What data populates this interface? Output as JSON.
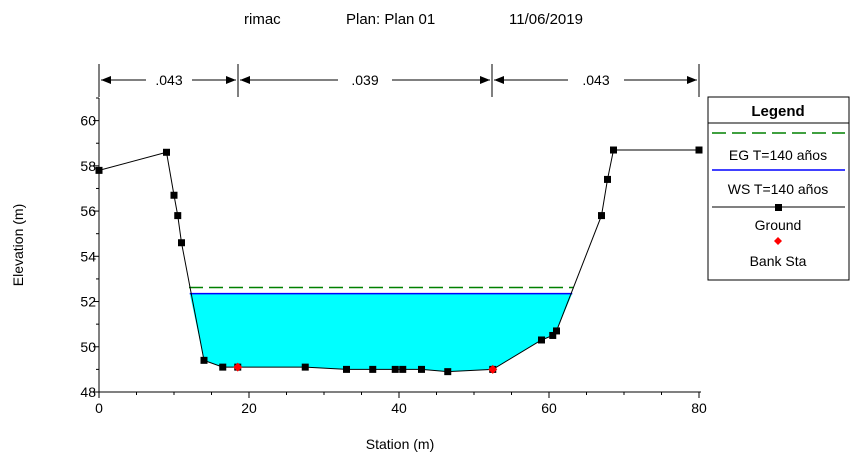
{
  "chart_data": {
    "type": "line",
    "title": {
      "project": "rimac",
      "plan": "Plan: Plan 01",
      "date": "11/06/2019"
    },
    "xlabel": "Station (m)",
    "ylabel": "Elevation (m)",
    "xlim": [
      0,
      80
    ],
    "ylim": [
      48,
      61
    ],
    "xticks": [
      "0",
      "20",
      "40",
      "60",
      "80"
    ],
    "yticks": [
      "48",
      "50",
      "52",
      "54",
      "56",
      "58",
      "60"
    ],
    "manning": [
      {
        "value": ".043",
        "from": 0,
        "to": 18.5
      },
      {
        "value": ".039",
        "from": 18.5,
        "to": 52.5
      },
      {
        "value": ".043",
        "from": 52.5,
        "to": 80
      }
    ],
    "ground": {
      "name": "Ground",
      "color": "#000000",
      "points": [
        [
          0,
          57.8
        ],
        [
          9,
          58.6
        ],
        [
          10,
          56.7
        ],
        [
          10.5,
          55.8
        ],
        [
          11,
          54.6
        ],
        [
          14,
          49.4
        ],
        [
          16.5,
          49.1
        ],
        [
          18.5,
          49.1
        ],
        [
          27.5,
          49.1
        ],
        [
          33,
          49.0
        ],
        [
          36.5,
          49.0
        ],
        [
          39.5,
          49.0
        ],
        [
          40.5,
          49.0
        ],
        [
          43,
          49.0
        ],
        [
          46.5,
          48.9
        ],
        [
          52.5,
          49.0
        ],
        [
          59,
          50.3
        ],
        [
          60.5,
          50.5
        ],
        [
          61,
          50.7
        ],
        [
          67,
          55.8
        ],
        [
          67.8,
          57.4
        ],
        [
          68.6,
          58.7
        ],
        [
          80,
          58.7
        ]
      ]
    },
    "water_surface": {
      "name": "WS T=140 años",
      "color": "#0000ff",
      "fill": "#00ffff",
      "elevation": 52.35,
      "left_x": 12.1,
      "right_x": 63.1
    },
    "energy_grade": {
      "name": "EG T=140 años",
      "color": "#008000",
      "elevation": 52.62,
      "left_x": 12.0,
      "right_x": 63.3
    },
    "bank_stations": {
      "name": "Bank Sta",
      "color": "#ff0000",
      "points": [
        [
          18.5,
          49.1
        ],
        [
          52.5,
          49.0
        ]
      ]
    },
    "legend": {
      "title": "Legend",
      "position": "right",
      "entries": [
        "EG T=140 años",
        "WS T=140 años",
        "Ground",
        "Bank Sta"
      ]
    }
  }
}
